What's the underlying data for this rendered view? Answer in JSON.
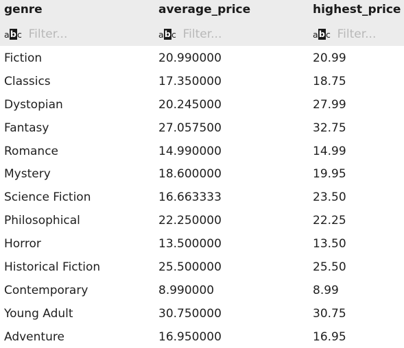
{
  "columns": [
    {
      "name": "genre",
      "filter_placeholder": "Filter..."
    },
    {
      "name": "average_price",
      "filter_placeholder": "Filter..."
    },
    {
      "name": "highest_price",
      "filter_placeholder": "Filter..."
    }
  ],
  "filter_icon": "abc-text-filter-icon",
  "rows": [
    [
      "Fiction",
      "20.990000",
      "20.99"
    ],
    [
      "Classics",
      "17.350000",
      "18.75"
    ],
    [
      "Dystopian",
      "20.245000",
      "27.99"
    ],
    [
      "Fantasy",
      "27.057500",
      "32.75"
    ],
    [
      "Romance",
      "14.990000",
      "14.99"
    ],
    [
      "Mystery",
      "18.600000",
      "19.95"
    ],
    [
      "Science Fiction",
      "16.663333",
      "23.50"
    ],
    [
      "Philosophical",
      "22.250000",
      "22.25"
    ],
    [
      "Horror",
      "13.500000",
      "13.50"
    ],
    [
      "Historical Fiction",
      "25.500000",
      "25.50"
    ],
    [
      "Contemporary",
      "8.990000",
      "8.99"
    ],
    [
      "Young Adult",
      "30.750000",
      "30.75"
    ],
    [
      "Adventure",
      "16.950000",
      "16.95"
    ]
  ],
  "colors": {
    "header_bg": "#ececec",
    "text": "#1e1e1e",
    "placeholder": "#b8b8b8",
    "background": "#ffffff"
  }
}
